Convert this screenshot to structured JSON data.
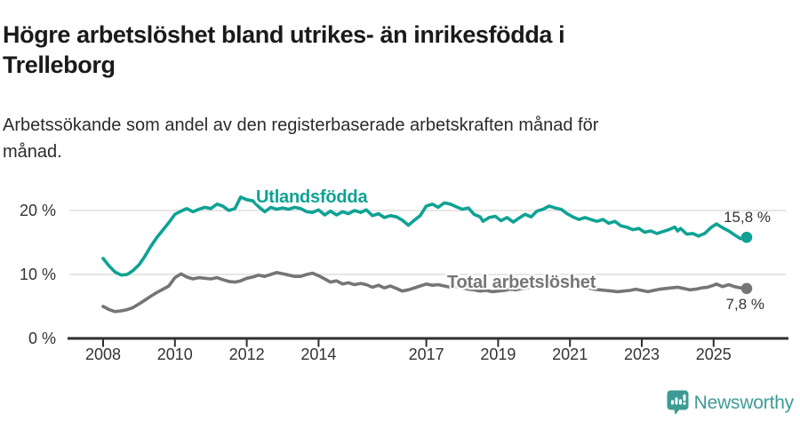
{
  "header": {
    "title_lines": [
      "Högre arbetslöshet bland utrikes- än inrikesfödda i",
      "Trelleborg"
    ],
    "subtitle_lines": [
      "Arbetssökande som andel av den registerbaserade arbetskraften månad för",
      "månad."
    ]
  },
  "chart_data": {
    "type": "line",
    "title": "Högre arbetslöshet bland utrikes- än inrikesfödda i Trelleborg",
    "subtitle": "Arbetssökande som andel av den registerbaserade arbetskraften månad för månad.",
    "unit": "%",
    "xlim": [
      2007.85,
      2026.1
    ],
    "ylim": [
      0,
      23
    ],
    "grid": "horizontal",
    "gridline_color": "#d6d6d6",
    "axis_color": "#2f2f2f",
    "tick_label_color": "#333333",
    "x_ticks": [
      2008,
      2010,
      2012,
      2014,
      2017,
      2019,
      2021,
      2023,
      2025
    ],
    "y_ticks": [
      {
        "value": 0,
        "label": "0 %"
      },
      {
        "value": 10,
        "label": "10 %"
      },
      {
        "value": 20,
        "label": "20 %"
      }
    ],
    "series": [
      {
        "name": "Utlandsfödda",
        "color": "#0fa294",
        "end_label": "15,8 %",
        "end_value": 15.8,
        "points": [
          [
            2008.0,
            12.5
          ],
          [
            2008.17,
            11.3
          ],
          [
            2008.33,
            10.4
          ],
          [
            2008.5,
            9.9
          ],
          [
            2008.67,
            10.0
          ],
          [
            2008.83,
            10.6
          ],
          [
            2009.0,
            11.5
          ],
          [
            2009.17,
            12.9
          ],
          [
            2009.33,
            14.4
          ],
          [
            2009.5,
            15.8
          ],
          [
            2009.67,
            17.0
          ],
          [
            2009.83,
            18.1
          ],
          [
            2010.0,
            19.4
          ],
          [
            2010.17,
            19.9
          ],
          [
            2010.33,
            20.3
          ],
          [
            2010.5,
            19.8
          ],
          [
            2010.67,
            20.2
          ],
          [
            2010.83,
            20.5
          ],
          [
            2011.0,
            20.3
          ],
          [
            2011.17,
            21.0
          ],
          [
            2011.33,
            20.7
          ],
          [
            2011.5,
            20.0
          ],
          [
            2011.67,
            20.3
          ],
          [
            2011.83,
            22.1
          ],
          [
            2012.0,
            21.7
          ],
          [
            2012.17,
            21.5
          ],
          [
            2012.33,
            20.6
          ],
          [
            2012.5,
            19.8
          ],
          [
            2012.67,
            20.5
          ],
          [
            2012.83,
            20.2
          ],
          [
            2013.0,
            20.4
          ],
          [
            2013.17,
            20.2
          ],
          [
            2013.33,
            20.5
          ],
          [
            2013.5,
            20.3
          ],
          [
            2013.67,
            19.8
          ],
          [
            2013.83,
            19.7
          ],
          [
            2014.0,
            20.1
          ],
          [
            2014.17,
            19.3
          ],
          [
            2014.33,
            19.9
          ],
          [
            2014.5,
            19.3
          ],
          [
            2014.67,
            19.8
          ],
          [
            2014.83,
            19.5
          ],
          [
            2015.0,
            20.0
          ],
          [
            2015.17,
            19.7
          ],
          [
            2015.33,
            20.1
          ],
          [
            2015.5,
            19.2
          ],
          [
            2015.67,
            19.5
          ],
          [
            2015.83,
            18.9
          ],
          [
            2016.0,
            19.2
          ],
          [
            2016.17,
            19.0
          ],
          [
            2016.33,
            18.5
          ],
          [
            2016.5,
            17.7
          ],
          [
            2016.67,
            18.5
          ],
          [
            2016.83,
            19.2
          ],
          [
            2017.0,
            20.7
          ],
          [
            2017.17,
            21.0
          ],
          [
            2017.33,
            20.5
          ],
          [
            2017.5,
            21.2
          ],
          [
            2017.67,
            21.0
          ],
          [
            2017.83,
            20.6
          ],
          [
            2018.0,
            20.2
          ],
          [
            2018.17,
            20.4
          ],
          [
            2018.33,
            19.4
          ],
          [
            2018.5,
            19.0
          ],
          [
            2018.58,
            18.3
          ],
          [
            2018.75,
            18.9
          ],
          [
            2018.92,
            19.1
          ],
          [
            2019.08,
            18.4
          ],
          [
            2019.25,
            18.9
          ],
          [
            2019.42,
            18.2
          ],
          [
            2019.58,
            18.8
          ],
          [
            2019.75,
            19.4
          ],
          [
            2019.92,
            19.0
          ],
          [
            2020.08,
            19.9
          ],
          [
            2020.25,
            20.2
          ],
          [
            2020.42,
            20.7
          ],
          [
            2020.58,
            20.4
          ],
          [
            2020.75,
            20.2
          ],
          [
            2020.92,
            19.5
          ],
          [
            2021.08,
            19.0
          ],
          [
            2021.25,
            18.6
          ],
          [
            2021.42,
            18.9
          ],
          [
            2021.58,
            18.6
          ],
          [
            2021.75,
            18.3
          ],
          [
            2021.92,
            18.6
          ],
          [
            2022.08,
            18.0
          ],
          [
            2022.25,
            18.3
          ],
          [
            2022.42,
            17.6
          ],
          [
            2022.58,
            17.4
          ],
          [
            2022.75,
            17.0
          ],
          [
            2022.92,
            17.2
          ],
          [
            2023.08,
            16.6
          ],
          [
            2023.25,
            16.8
          ],
          [
            2023.42,
            16.4
          ],
          [
            2023.58,
            16.7
          ],
          [
            2023.75,
            17.0
          ],
          [
            2023.92,
            17.4
          ],
          [
            2024.0,
            16.8
          ],
          [
            2024.08,
            17.2
          ],
          [
            2024.25,
            16.3
          ],
          [
            2024.42,
            16.4
          ],
          [
            2024.58,
            16.0
          ],
          [
            2024.75,
            16.4
          ],
          [
            2024.92,
            17.3
          ],
          [
            2025.08,
            17.9
          ],
          [
            2025.25,
            17.3
          ],
          [
            2025.42,
            16.8
          ],
          [
            2025.58,
            16.2
          ],
          [
            2025.75,
            15.6
          ],
          [
            2025.92,
            15.8
          ]
        ]
      },
      {
        "name": "Total arbetslöshet",
        "color": "#757575",
        "end_label": "7,8 %",
        "end_value": 7.8,
        "points": [
          [
            2008.0,
            5.0
          ],
          [
            2008.17,
            4.5
          ],
          [
            2008.33,
            4.2
          ],
          [
            2008.5,
            4.3
          ],
          [
            2008.67,
            4.5
          ],
          [
            2008.83,
            4.8
          ],
          [
            2009.0,
            5.4
          ],
          [
            2009.17,
            6.0
          ],
          [
            2009.33,
            6.6
          ],
          [
            2009.5,
            7.2
          ],
          [
            2009.67,
            7.7
          ],
          [
            2009.83,
            8.2
          ],
          [
            2010.0,
            9.5
          ],
          [
            2010.17,
            10.1
          ],
          [
            2010.33,
            9.6
          ],
          [
            2010.5,
            9.3
          ],
          [
            2010.67,
            9.5
          ],
          [
            2010.83,
            9.4
          ],
          [
            2011.0,
            9.3
          ],
          [
            2011.17,
            9.5
          ],
          [
            2011.33,
            9.2
          ],
          [
            2011.5,
            8.9
          ],
          [
            2011.67,
            8.8
          ],
          [
            2011.83,
            9.0
          ],
          [
            2012.0,
            9.4
          ],
          [
            2012.17,
            9.6
          ],
          [
            2012.33,
            9.9
          ],
          [
            2012.5,
            9.7
          ],
          [
            2012.67,
            10.0
          ],
          [
            2012.83,
            10.3
          ],
          [
            2013.0,
            10.1
          ],
          [
            2013.17,
            9.9
          ],
          [
            2013.33,
            9.7
          ],
          [
            2013.5,
            9.7
          ],
          [
            2013.67,
            10.0
          ],
          [
            2013.83,
            10.2
          ],
          [
            2014.0,
            9.8
          ],
          [
            2014.17,
            9.3
          ],
          [
            2014.33,
            8.8
          ],
          [
            2014.5,
            9.0
          ],
          [
            2014.67,
            8.5
          ],
          [
            2014.83,
            8.7
          ],
          [
            2015.0,
            8.4
          ],
          [
            2015.17,
            8.6
          ],
          [
            2015.33,
            8.4
          ],
          [
            2015.5,
            8.0
          ],
          [
            2015.67,
            8.3
          ],
          [
            2015.83,
            7.9
          ],
          [
            2016.0,
            8.2
          ],
          [
            2016.17,
            7.8
          ],
          [
            2016.33,
            7.4
          ],
          [
            2016.5,
            7.6
          ],
          [
            2016.67,
            7.9
          ],
          [
            2016.83,
            8.2
          ],
          [
            2017.0,
            8.5
          ],
          [
            2017.17,
            8.3
          ],
          [
            2017.33,
            8.4
          ],
          [
            2017.5,
            8.2
          ],
          [
            2017.67,
            8.0
          ],
          [
            2017.83,
            8.1
          ],
          [
            2018.0,
            7.9
          ],
          [
            2018.17,
            7.7
          ],
          [
            2018.33,
            7.6
          ],
          [
            2018.5,
            7.4
          ],
          [
            2018.67,
            7.5
          ],
          [
            2018.83,
            7.3
          ],
          [
            2019.0,
            7.4
          ],
          [
            2019.17,
            7.5
          ],
          [
            2019.33,
            7.7
          ],
          [
            2019.5,
            7.6
          ],
          [
            2019.67,
            7.8
          ],
          [
            2019.83,
            7.9
          ],
          [
            2020.0,
            8.1
          ],
          [
            2020.17,
            8.5
          ],
          [
            2020.33,
            8.8
          ],
          [
            2020.5,
            8.7
          ],
          [
            2020.67,
            8.6
          ],
          [
            2020.83,
            8.4
          ],
          [
            2021.0,
            8.3
          ],
          [
            2021.17,
            8.1
          ],
          [
            2021.33,
            8.0
          ],
          [
            2021.5,
            7.9
          ],
          [
            2021.67,
            7.7
          ],
          [
            2021.83,
            7.6
          ],
          [
            2022.0,
            7.5
          ],
          [
            2022.17,
            7.4
          ],
          [
            2022.33,
            7.3
          ],
          [
            2022.5,
            7.4
          ],
          [
            2022.67,
            7.5
          ],
          [
            2022.83,
            7.7
          ],
          [
            2023.0,
            7.5
          ],
          [
            2023.17,
            7.3
          ],
          [
            2023.33,
            7.5
          ],
          [
            2023.5,
            7.7
          ],
          [
            2023.67,
            7.8
          ],
          [
            2023.83,
            7.9
          ],
          [
            2024.0,
            8.0
          ],
          [
            2024.17,
            7.8
          ],
          [
            2024.33,
            7.6
          ],
          [
            2024.5,
            7.7
          ],
          [
            2024.67,
            7.9
          ],
          [
            2024.83,
            8.0
          ],
          [
            2025.0,
            8.3
          ],
          [
            2025.08,
            8.5
          ],
          [
            2025.25,
            8.1
          ],
          [
            2025.42,
            8.4
          ],
          [
            2025.58,
            8.1
          ],
          [
            2025.75,
            7.9
          ],
          [
            2025.92,
            7.8
          ]
        ]
      }
    ],
    "legend_position": "inline-labels"
  },
  "footer": {
    "brand": "Newsworthy",
    "brand_color": "#3d9b96",
    "logo_icon": "bar-chart-speech-bubble"
  }
}
